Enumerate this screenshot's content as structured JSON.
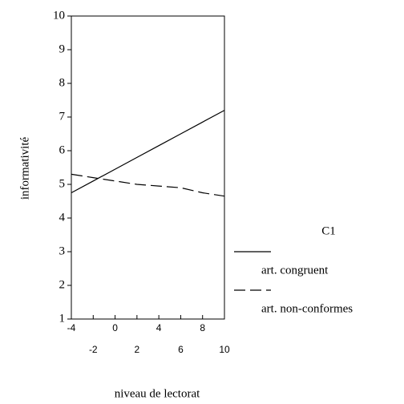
{
  "chart_data": {
    "type": "line",
    "x_label": "niveau de lectorat",
    "y_label": "informativité",
    "x": [
      -4,
      -2,
      0,
      2,
      4,
      6,
      8,
      10
    ],
    "series": [
      {
        "name": "art. congruent",
        "color": "#000000",
        "dash": "solid",
        "values": [
          4.75,
          5.1,
          5.45,
          5.8,
          6.15,
          6.5,
          6.85,
          7.2
        ]
      },
      {
        "name": "art. non-conformes",
        "color": "#000000",
        "dash": "dashed",
        "values": [
          5.3,
          5.2,
          5.1,
          5.0,
          4.95,
          4.9,
          4.75,
          4.65
        ]
      }
    ],
    "legend_title": "C1",
    "legend": "right",
    "xlim": [
      -4,
      10
    ],
    "xticks": [
      -4,
      -2,
      0,
      2,
      4,
      6,
      8,
      10
    ],
    "ylim": [
      1,
      10
    ],
    "yticks": [
      1,
      2,
      3,
      4,
      5,
      6,
      7,
      8,
      9,
      10
    ]
  }
}
